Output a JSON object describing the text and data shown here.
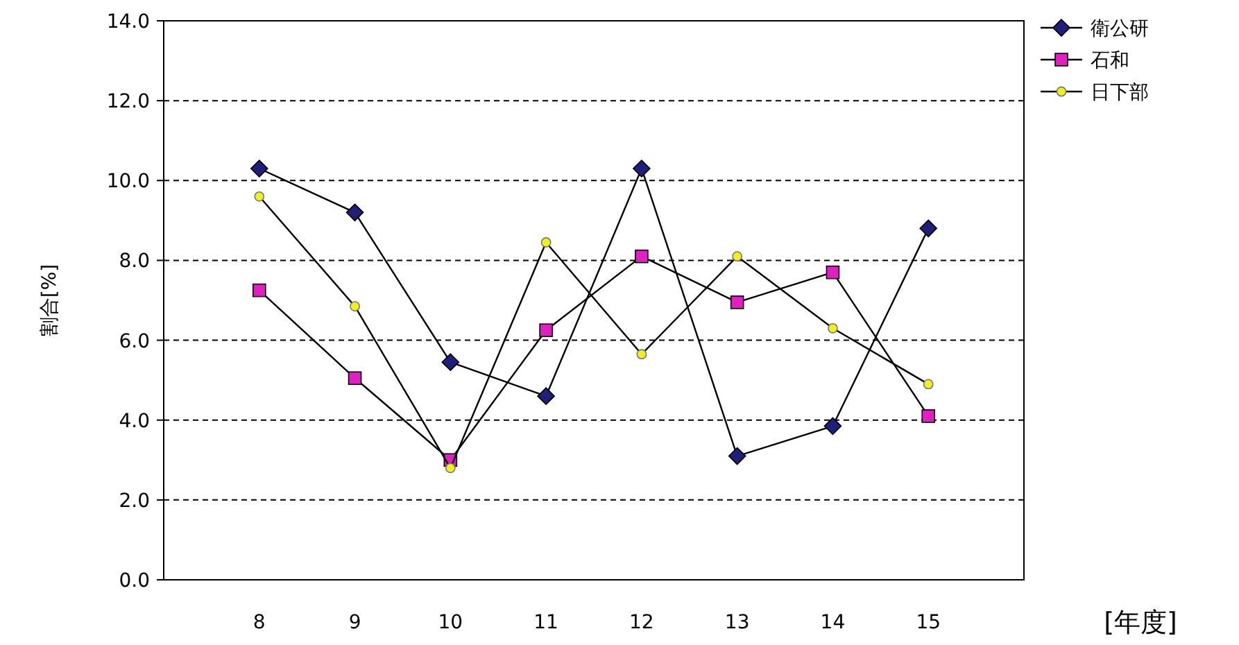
{
  "chart_data": {
    "type": "line",
    "xlabel": "[年度]",
    "ylabel": "割合[%]",
    "categories": [
      "8",
      "9",
      "10",
      "11",
      "12",
      "13",
      "14",
      "15"
    ],
    "ylim": [
      0,
      14
    ],
    "yticks": [
      {
        "value": 0,
        "label": "0.0"
      },
      {
        "value": 2,
        "label": "2.0"
      },
      {
        "value": 4,
        "label": "4.0"
      },
      {
        "value": 6,
        "label": "6.0"
      },
      {
        "value": 8,
        "label": "8.0"
      },
      {
        "value": 10,
        "label": "10.0"
      },
      {
        "value": 12,
        "label": "12.0"
      },
      {
        "value": 14,
        "label": "14.0"
      }
    ],
    "grid": "y",
    "legend": "right",
    "series": [
      {
        "name": "衛公研",
        "color": "#1f1f7a",
        "marker": "diamond",
        "values": [
          10.3,
          9.2,
          5.45,
          4.6,
          10.3,
          3.1,
          3.85,
          8.8
        ]
      },
      {
        "name": "石和",
        "color": "#e020c0",
        "marker": "square",
        "values": [
          7.25,
          5.05,
          3.0,
          6.25,
          8.1,
          6.95,
          7.7,
          4.1
        ]
      },
      {
        "name": "日下部",
        "color": "#f0f020",
        "marker": "circle",
        "values": [
          9.6,
          6.85,
          2.8,
          8.45,
          5.65,
          8.1,
          6.3,
          4.9
        ]
      }
    ]
  }
}
